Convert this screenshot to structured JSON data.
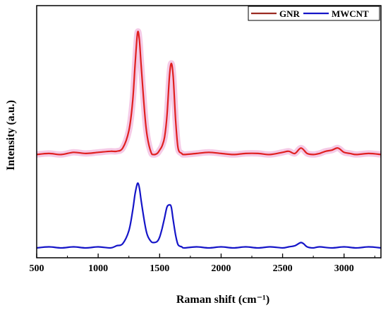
{
  "chart_data": {
    "type": "line",
    "xlabel": "Raman shift (cm⁻¹)",
    "ylabel": "Intensity (a.u.)",
    "xlim": [
      500,
      3300
    ],
    "ylim": [
      0,
      1.1
    ],
    "x_ticks": [
      500,
      1000,
      1500,
      2000,
      2500,
      3000
    ],
    "x_tick_labels": [
      "500",
      "1000",
      "1500",
      "2000",
      "2500",
      "3000"
    ],
    "y_ticks_labeled": false,
    "grid": false,
    "legend_placement": "top-right",
    "series": [
      {
        "name": "GNR",
        "color": "#9b2b22",
        "peak_color": "#e02020",
        "halo_color": "#f2b8de",
        "x": [
          500,
          600,
          700,
          800,
          900,
          1000,
          1100,
          1150,
          1200,
          1250,
          1280,
          1300,
          1320,
          1335,
          1350,
          1380,
          1400,
          1430,
          1450,
          1480,
          1500,
          1520,
          1540,
          1560,
          1580,
          1595,
          1610,
          1630,
          1650,
          1680,
          1700,
          1800,
          1900,
          2000,
          2100,
          2200,
          2300,
          2400,
          2500,
          2550,
          2600,
          2650,
          2700,
          2750,
          2800,
          2850,
          2900,
          2950,
          3000,
          3050,
          3100,
          3200,
          3300
        ],
        "y": [
          0.44,
          0.445,
          0.44,
          0.45,
          0.445,
          0.45,
          0.455,
          0.455,
          0.47,
          0.55,
          0.68,
          0.85,
          1.0,
          0.97,
          0.85,
          0.62,
          0.52,
          0.45,
          0.44,
          0.445,
          0.46,
          0.48,
          0.52,
          0.62,
          0.8,
          0.86,
          0.8,
          0.6,
          0.47,
          0.445,
          0.44,
          0.445,
          0.45,
          0.445,
          0.44,
          0.445,
          0.445,
          0.44,
          0.45,
          0.455,
          0.445,
          0.47,
          0.445,
          0.44,
          0.445,
          0.455,
          0.46,
          0.47,
          0.45,
          0.445,
          0.44,
          0.445,
          0.44
        ]
      },
      {
        "name": "MWCNT",
        "color": "#1515c8",
        "x": [
          500,
          600,
          700,
          800,
          900,
          1000,
          1100,
          1150,
          1200,
          1250,
          1280,
          1300,
          1320,
          1335,
          1350,
          1380,
          1400,
          1430,
          1450,
          1480,
          1500,
          1520,
          1540,
          1560,
          1580,
          1595,
          1610,
          1630,
          1650,
          1680,
          1700,
          1800,
          1900,
          2000,
          2100,
          2200,
          2300,
          2400,
          2500,
          2550,
          2600,
          2630,
          2650,
          2670,
          2700,
          2750,
          2800,
          2900,
          3000,
          3100,
          3200,
          3300
        ],
        "y": [
          0.0,
          0.005,
          0.0,
          0.005,
          0.0,
          0.005,
          0.0,
          0.01,
          0.02,
          0.08,
          0.17,
          0.25,
          0.3,
          0.28,
          0.22,
          0.11,
          0.06,
          0.03,
          0.025,
          0.03,
          0.05,
          0.09,
          0.14,
          0.19,
          0.2,
          0.19,
          0.13,
          0.06,
          0.015,
          0.005,
          0.0,
          0.005,
          0.0,
          0.005,
          0.0,
          0.005,
          0.0,
          0.005,
          0.0,
          0.005,
          0.01,
          0.02,
          0.025,
          0.02,
          0.005,
          0.0,
          0.005,
          0.0,
          0.005,
          0.0,
          0.005,
          0.0
        ]
      }
    ]
  }
}
